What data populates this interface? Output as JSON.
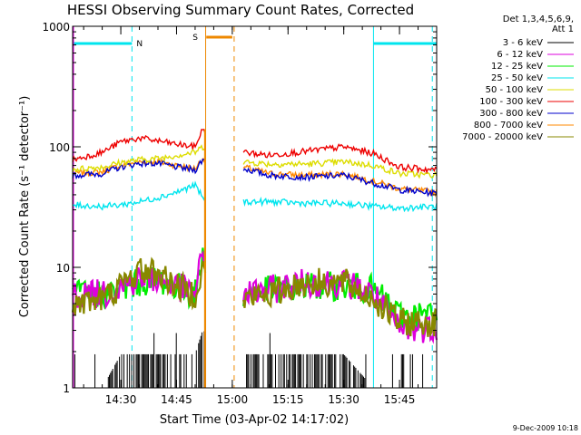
{
  "chart_data": {
    "type": "line",
    "title": "HESSI Observing Summary Count Rates, Corrected",
    "ylabel": "Corrected Count Rate (s⁻¹ detector⁻¹)",
    "xlabel": "Start Time (03-Apr-02 14:17:02)",
    "y_scale": "log",
    "ylim": [
      1,
      1000
    ],
    "y_ticks": [
      {
        "value": 1,
        "label": "1"
      },
      {
        "value": 10,
        "label": "10"
      },
      {
        "value": 100,
        "label": "100"
      },
      {
        "value": 1000,
        "label": "1000"
      }
    ],
    "xlim": [
      "14:17:02",
      "15:55:00"
    ],
    "x_ticks": [
      {
        "time": "14:30",
        "label": "14:30"
      },
      {
        "time": "14:45",
        "label": "14:45"
      },
      {
        "time": "15:00",
        "label": "15:00"
      },
      {
        "time": "15:15",
        "label": "15:15"
      },
      {
        "time": "15:30",
        "label": "15:30"
      },
      {
        "time": "15:45",
        "label": "15:45"
      }
    ],
    "legend": {
      "position": "right",
      "header": [
        "Det 1,3,4,5,6,9,",
        "Att 1"
      ],
      "entries": [
        {
          "label": "3 - 6 keV",
          "color": "#000000"
        },
        {
          "label": "6 - 12 keV",
          "color": "#dd00dd"
        },
        {
          "label": "12 - 25 keV",
          "color": "#00ee00"
        },
        {
          "label": "25 - 50 keV",
          "color": "#00e5ee"
        },
        {
          "label": "50 - 100 keV",
          "color": "#dddd00"
        },
        {
          "label": "100 - 300 keV",
          "color": "#ee0000"
        },
        {
          "label": "300 - 800 keV",
          "color": "#0000cc"
        },
        {
          "label": "800 - 7000 keV",
          "color": "#ff8800"
        },
        {
          "label": "7000 - 20000 keV",
          "color": "#888800"
        }
      ]
    },
    "flags": {
      "night": [
        {
          "start": "14:17:02",
          "end": "14:33:00"
        },
        {
          "start": "15:38:00",
          "end": "15:55:00"
        }
      ],
      "saa": [
        {
          "start": "14:53:00",
          "end": "15:00:00"
        }
      ],
      "night_label": "N",
      "saa_label": "S",
      "night_color": "#00e5ee",
      "saa_color": "#ee8800"
    },
    "time_markers": [
      {
        "time": "14:33:00",
        "color": "#00e5ee",
        "style": "dashed"
      },
      {
        "time": "14:52:50",
        "color": "#ee8800",
        "style": "solid"
      },
      {
        "time": "15:00:30",
        "color": "#ee8800",
        "style": "dashed"
      },
      {
        "time": "15:38:00",
        "color": "#00e5ee",
        "style": "solid"
      },
      {
        "time": "15:53:50",
        "color": "#00e5ee",
        "style": "dashed"
      }
    ],
    "data_gap": {
      "start": "14:53:00",
      "end": "15:03:00"
    },
    "series": [
      {
        "name": "800 - 7000 keV",
        "color": "#ff8800",
        "x": [
          "14:17:02",
          "14:25",
          "14:30",
          "14:35",
          "14:40",
          "14:45",
          "14:50",
          "14:52",
          "15:03",
          "15:10",
          "15:20",
          "15:30",
          "15:38",
          "15:45",
          "15:55"
        ],
        "y": [
          60,
          62,
          70,
          75,
          75,
          70,
          66,
          80,
          68,
          60,
          58,
          60,
          52,
          45,
          42
        ]
      },
      {
        "name": "300 - 800 keV",
        "color": "#0000cc",
        "x": [
          "14:17:02",
          "14:25",
          "14:30",
          "14:35",
          "14:40",
          "14:45",
          "14:50",
          "14:52",
          "15:03",
          "15:10",
          "15:20",
          "15:30",
          "15:38",
          "15:45",
          "15:55"
        ],
        "y": [
          58,
          60,
          68,
          73,
          73,
          68,
          64,
          78,
          66,
          58,
          56,
          58,
          50,
          44,
          41
        ]
      },
      {
        "name": "50 - 100 keV",
        "color": "#dddd00",
        "x": [
          "14:17:02",
          "14:25",
          "14:30",
          "14:35",
          "14:40",
          "14:45",
          "14:50",
          "14:52",
          "15:03",
          "15:10",
          "15:20",
          "15:30",
          "15:38",
          "15:45",
          "15:55"
        ],
        "y": [
          65,
          68,
          74,
          78,
          80,
          85,
          90,
          100,
          75,
          72,
          72,
          75,
          70,
          60,
          58
        ]
      },
      {
        "name": "100 - 300 keV",
        "color": "#ee0000",
        "x": [
          "14:17:02",
          "14:25",
          "14:30",
          "14:35",
          "14:40",
          "14:45",
          "14:50",
          "14:52",
          "15:03",
          "15:10",
          "15:20",
          "15:30",
          "15:38",
          "15:45",
          "15:55"
        ],
        "y": [
          78,
          90,
          110,
          118,
          112,
          105,
          100,
          140,
          90,
          85,
          92,
          100,
          88,
          68,
          64
        ]
      },
      {
        "name": "25 - 50 keV",
        "color": "#00e5ee",
        "x": [
          "14:17:02",
          "14:25",
          "14:30",
          "14:35",
          "14:40",
          "14:45",
          "14:50",
          "14:52",
          "15:03",
          "15:10",
          "15:20",
          "15:30",
          "15:38",
          "15:45",
          "15:55"
        ],
        "y": [
          33,
          32,
          33,
          35,
          38,
          42,
          48,
          38,
          35,
          35,
          34,
          34,
          32,
          31,
          32
        ]
      },
      {
        "name": "12 - 25 keV",
        "color": "#00ee00",
        "x": [
          "14:17:02",
          "14:25",
          "14:30",
          "14:35",
          "14:40",
          "14:45",
          "14:50",
          "14:52",
          "15:03",
          "15:10",
          "15:20",
          "15:30",
          "15:38",
          "15:45",
          "15:55"
        ],
        "y": [
          6,
          6,
          6.5,
          7.5,
          8,
          7,
          6,
          12,
          6,
          6.5,
          7,
          7,
          6.5,
          4,
          4
        ]
      },
      {
        "name": "6 - 12 keV",
        "color": "#dd00dd",
        "x": [
          "14:17:02",
          "14:25",
          "14:30",
          "14:35",
          "14:40",
          "14:45",
          "14:50",
          "14:52",
          "15:03",
          "15:10",
          "15:20",
          "15:30",
          "15:38",
          "15:45",
          "15:55"
        ],
        "y": [
          6,
          6,
          7,
          8,
          8,
          7,
          6,
          13,
          6,
          6.5,
          7.5,
          7.5,
          6,
          3,
          3.2
        ]
      },
      {
        "name": "7000 - 20000 keV",
        "color": "#888800",
        "x": [
          "14:17:02",
          "14:25",
          "14:30",
          "14:35",
          "14:40",
          "14:45",
          "14:50",
          "14:52",
          "15:03",
          "15:10",
          "15:20",
          "15:30",
          "15:38",
          "15:45",
          "15:55"
        ],
        "y": [
          5,
          5.5,
          7,
          9.5,
          9,
          7,
          6,
          10,
          5.5,
          6,
          7.5,
          7.5,
          5.5,
          3.5,
          3.5
        ]
      },
      {
        "name": "3 - 6 keV",
        "color": "#000000",
        "x": [
          "14:17:02",
          "14:25",
          "14:30",
          "14:35",
          "14:40",
          "14:45",
          "14:50",
          "14:52",
          "15:03",
          "15:10",
          "15:20",
          "15:30",
          "15:38",
          "15:45",
          "15:55"
        ],
        "y": [
          1,
          1,
          1.9,
          1.9,
          1.9,
          1.9,
          1.9,
          3,
          1.9,
          1.9,
          1.9,
          1.9,
          1,
          1,
          1
        ]
      }
    ]
  },
  "footer_date": "9-Dec-2009 10:18"
}
